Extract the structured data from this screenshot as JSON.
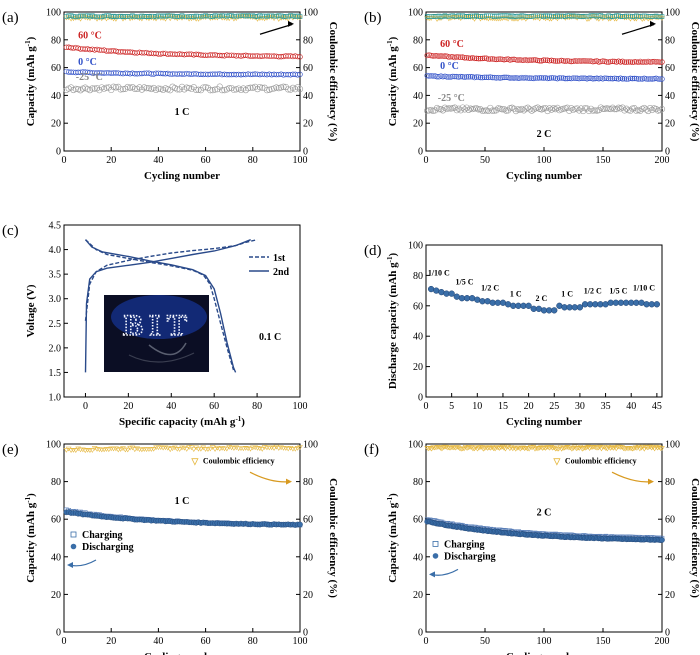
{
  "panels": {
    "a": {
      "label": "(a)",
      "ylabel": "Capacity (mAh g-1)",
      "y2label": "Coulombic efficiency (%)",
      "xlabel": "Cycling number",
      "rate": "1 C",
      "ann": [
        "60 °C",
        "0 °C",
        "-25 °C"
      ]
    },
    "b": {
      "label": "(b)",
      "ylabel": "Capacity (mAh g-1)",
      "y2label": "Coulombic efficiency (%)",
      "xlabel": "Cycling number",
      "rate": "2 C",
      "ann": [
        "60 °C",
        "0 °C",
        "-25 °C"
      ]
    },
    "c": {
      "label": "(c)",
      "ylabel": "Voltage (V)",
      "xlabel": "Specific capacity (mAh g-1)",
      "rate": "0.1 C",
      "legend": [
        "1st",
        "2nd"
      ],
      "photo_text": "BIT"
    },
    "d": {
      "label": "(d)",
      "ylabel": "Discharge capacity (mAh g-1)",
      "xlabel": "Cycling number",
      "rates": [
        "1/10 C",
        "1/5 C",
        "1/2 C",
        "1 C",
        "2 C",
        "1 C",
        "1/2 C",
        "1/5 C",
        "1/10 C"
      ]
    },
    "e": {
      "label": "(e)",
      "ylabel": "Capacity (mAh g-1)",
      "y2label": "Coulombic efficiency (%)",
      "xlabel": "Cycling number",
      "rate": "1 C",
      "legend": [
        "Charging",
        "Discharging"
      ],
      "ce_label": "Coulombic efficiency"
    },
    "f": {
      "label": "(f)",
      "ylabel": "Capacity (mAh g-1)",
      "y2label": "Coulombic efficiency (%)",
      "xlabel": "Cycling number",
      "rate": "2 C",
      "legend": [
        "Charging",
        "Discharging"
      ],
      "ce_label": "Coulombic efficiency"
    }
  },
  "chart_data": [
    {
      "panel": "a",
      "type": "scatter",
      "xlim": [
        0,
        100
      ],
      "ylim": [
        0,
        100
      ],
      "y2lim": [
        0,
        100
      ],
      "xticks": [
        0,
        20,
        40,
        60,
        80,
        100
      ],
      "yticks": [
        0,
        20,
        40,
        60,
        80,
        100
      ],
      "y2ticks": [
        0,
        20,
        40,
        60,
        80,
        100
      ],
      "colors": {
        "c60": "#cc2222",
        "c0": "#3050c8",
        "cm25": "#999999",
        "ce1": "#e6b840",
        "ce2": "#1f8a8a"
      },
      "series": [
        {
          "name": "60 °C",
          "start": 75,
          "end": 68
        },
        {
          "name": "0 °C",
          "start": 57,
          "end": 55
        },
        {
          "name": "-25 °C",
          "start": 45,
          "end": 45
        },
        {
          "name": "CE",
          "start": 96,
          "end": 96
        }
      ]
    },
    {
      "panel": "b",
      "type": "scatter",
      "xlim": [
        0,
        200
      ],
      "ylim": [
        0,
        100
      ],
      "y2lim": [
        0,
        100
      ],
      "xticks": [
        0,
        50,
        100,
        150,
        200
      ],
      "yticks": [
        0,
        20,
        40,
        60,
        80,
        100
      ],
      "y2ticks": [
        0,
        20,
        40,
        60,
        80,
        100
      ],
      "series": [
        {
          "name": "60 °C",
          "start": 69,
          "end": 64
        },
        {
          "name": "0 °C",
          "start": 54,
          "end": 52
        },
        {
          "name": "-25 °C",
          "start": 30,
          "end": 30
        },
        {
          "name": "CE",
          "start": 96,
          "end": 96
        }
      ]
    },
    {
      "panel": "c",
      "type": "line",
      "xlim": [
        -10,
        100
      ],
      "ylim": [
        1.0,
        4.5
      ],
      "xticks": [
        0,
        20,
        40,
        60,
        80,
        100
      ],
      "yticks": [
        1.0,
        1.5,
        2.0,
        2.5,
        3.0,
        3.5,
        4.0,
        4.5
      ],
      "series": [
        {
          "name": "1st",
          "charge": [
            [
              0,
              2.55
            ],
            [
              2,
              3.3
            ],
            [
              5,
              3.55
            ],
            [
              10,
              3.68
            ],
            [
              20,
              3.78
            ],
            [
              30,
              3.86
            ],
            [
              40,
              3.93
            ],
            [
              50,
              3.98
            ],
            [
              60,
              4.02
            ],
            [
              70,
              4.08
            ],
            [
              75,
              4.15
            ],
            [
              80,
              4.2
            ]
          ],
          "discharge": [
            [
              0,
              4.2
            ],
            [
              5,
              4.0
            ],
            [
              10,
              3.9
            ],
            [
              20,
              3.82
            ],
            [
              30,
              3.74
            ],
            [
              40,
              3.67
            ],
            [
              50,
              3.58
            ],
            [
              55,
              3.48
            ],
            [
              58,
              3.3
            ],
            [
              60,
              3.0
            ],
            [
              63,
              2.5
            ],
            [
              66,
              2.0
            ],
            [
              69,
              1.55
            ]
          ]
        },
        {
          "name": "2nd",
          "charge": [
            [
              0,
              1.5
            ],
            [
              0.5,
              2.9
            ],
            [
              2,
              3.4
            ],
            [
              5,
              3.55
            ],
            [
              10,
              3.62
            ],
            [
              20,
              3.68
            ],
            [
              30,
              3.74
            ],
            [
              40,
              3.82
            ],
            [
              50,
              3.9
            ],
            [
              60,
              3.97
            ],
            [
              70,
              4.08
            ],
            [
              77,
              4.2
            ]
          ],
          "discharge": [
            [
              0,
              4.2
            ],
            [
              3,
              4.05
            ],
            [
              8,
              3.95
            ],
            [
              20,
              3.86
            ],
            [
              30,
              3.77
            ],
            [
              40,
              3.69
            ],
            [
              50,
              3.59
            ],
            [
              56,
              3.47
            ],
            [
              60,
              3.2
            ],
            [
              63,
              2.7
            ],
            [
              66,
              2.1
            ],
            [
              69,
              1.6
            ],
            [
              70,
              1.5
            ]
          ]
        }
      ]
    },
    {
      "panel": "d",
      "type": "scatter",
      "xlim": [
        0,
        46
      ],
      "ylim": [
        0,
        100
      ],
      "xticks": [
        0,
        5,
        10,
        15,
        20,
        25,
        30,
        35,
        40,
        45
      ],
      "yticks": [
        0,
        20,
        40,
        60,
        80,
        100
      ],
      "x": [
        1,
        2,
        3,
        4,
        5,
        6,
        7,
        8,
        9,
        10,
        11,
        12,
        13,
        14,
        15,
        16,
        17,
        18,
        19,
        20,
        21,
        22,
        23,
        24,
        25,
        26,
        27,
        28,
        29,
        30,
        31,
        32,
        33,
        34,
        35,
        36,
        37,
        38,
        39,
        40,
        41,
        42,
        43,
        44,
        45
      ],
      "values": [
        71,
        70,
        69,
        68,
        68,
        66,
        65,
        65,
        65,
        64,
        63,
        63,
        62,
        62,
        62,
        61,
        60,
        60,
        60,
        60,
        58,
        58,
        57,
        57,
        57,
        60,
        59,
        59,
        59,
        59,
        61,
        61,
        61,
        61,
        61,
        62,
        62,
        62,
        62,
        62,
        62,
        62,
        61,
        61,
        61
      ]
    },
    {
      "panel": "e",
      "type": "scatter",
      "xlim": [
        0,
        100
      ],
      "ylim": [
        0,
        100
      ],
      "y2lim": [
        0,
        100
      ],
      "xticks": [
        0,
        20,
        40,
        60,
        80,
        100
      ],
      "yticks": [
        0,
        20,
        40,
        60,
        80,
        100
      ],
      "y2ticks": [
        0,
        20,
        40,
        60,
        80,
        100
      ],
      "series": [
        {
          "name": "Charging",
          "start": 65,
          "end": 57
        },
        {
          "name": "Discharging",
          "start": 64,
          "end": 57
        },
        {
          "name": "Coulombic efficiency",
          "start": 97,
          "end": 98
        }
      ]
    },
    {
      "panel": "f",
      "type": "scatter",
      "xlim": [
        0,
        200
      ],
      "ylim": [
        0,
        100
      ],
      "y2lim": [
        0,
        100
      ],
      "xticks": [
        0,
        50,
        100,
        150,
        200
      ],
      "yticks": [
        0,
        20,
        40,
        60,
        80,
        100
      ],
      "y2ticks": [
        0,
        20,
        40,
        60,
        80,
        100
      ],
      "series": [
        {
          "name": "Charging",
          "start": 60,
          "end": 50
        },
        {
          "name": "Discharging",
          "start": 59,
          "end": 49
        },
        {
          "name": "Coulombic efficiency",
          "start": 98,
          "end": 98
        }
      ]
    }
  ]
}
